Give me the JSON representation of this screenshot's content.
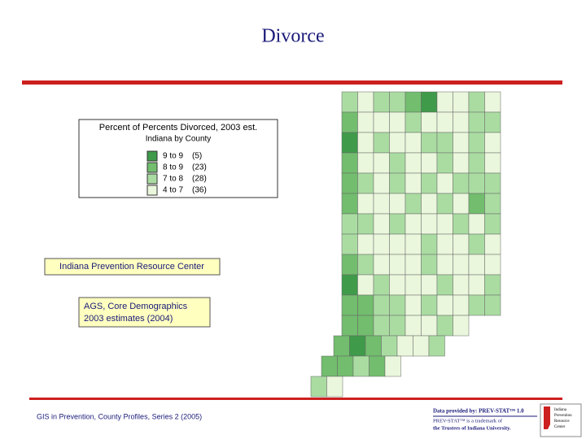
{
  "title": "Divorce",
  "legend": {
    "title": "Percent of Percents Divorced, 2003 est.",
    "subtitle": "Indiana by County",
    "classes": [
      {
        "range": "9 to 9",
        "count": "(5)",
        "color": "#3f9a4a"
      },
      {
        "range": "8 to 9",
        "count": "(23)",
        "color": "#72bd6e"
      },
      {
        "range": "7 to 8",
        "count": "(28)",
        "color": "#aadca2"
      },
      {
        "range": "4 to 7",
        "count": "(36)",
        "color": "#eaf7dc"
      }
    ]
  },
  "org_box": "Indiana Prevention Resource Center",
  "source_box": [
    "AGS, Core Demographics",
    "2003 estimates (2004)"
  ],
  "footer": "GIS in Prevention, County Profiles, Series 2 (2005)",
  "logo": {
    "provided": "Data provided by: PREV-STAT™ 1.0",
    "trademark_1": "PREV-STAT™ is a trademark of",
    "trademark_2": "the Trustees of Indiana University.",
    "center": [
      "Indiana",
      "Prevention",
      "Resource",
      "Center"
    ]
  }
}
